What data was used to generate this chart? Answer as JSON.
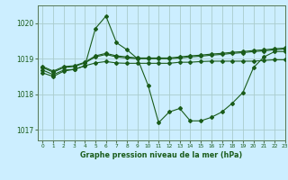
{
  "background_color": "#cceeff",
  "grid_color": "#aacccc",
  "line_color": "#1a5c1a",
  "title": "Graphe pression niveau de la mer (hPa)",
  "xlim": [
    -0.5,
    23
  ],
  "ylim": [
    1016.7,
    1020.5
  ],
  "yticks": [
    1017,
    1018,
    1019,
    1020
  ],
  "xticks": [
    0,
    1,
    2,
    3,
    4,
    5,
    6,
    7,
    8,
    9,
    10,
    11,
    12,
    13,
    14,
    15,
    16,
    17,
    18,
    19,
    20,
    21,
    22,
    23
  ],
  "series": [
    {
      "x": [
        0,
        1,
        2,
        3,
        4,
        5,
        6,
        7,
        8,
        9,
        10,
        11,
        12,
        13,
        14,
        15,
        16,
        17,
        18,
        19,
        20,
        21,
        22,
        23
      ],
      "y": [
        1018.6,
        1018.5,
        1018.65,
        1018.7,
        1018.8,
        1019.85,
        1020.2,
        1019.45,
        1019.25,
        1019.0,
        1018.25,
        1017.2,
        1017.5,
        1017.6,
        1017.25,
        1017.25,
        1017.35,
        1017.5,
        1017.75,
        1018.05,
        1018.75,
        1019.05,
        1019.2,
        1019.2
      ]
    },
    {
      "x": [
        0,
        1,
        2,
        3,
        4,
        5,
        6,
        7,
        8,
        9,
        10,
        11,
        12,
        13,
        14,
        15,
        16,
        17,
        18,
        19,
        20,
        21,
        22,
        23
      ],
      "y": [
        1018.75,
        1018.62,
        1018.75,
        1018.78,
        1018.88,
        1019.05,
        1019.12,
        1019.05,
        1019.02,
        1019.0,
        1019.0,
        1019.0,
        1019.0,
        1019.02,
        1019.05,
        1019.07,
        1019.1,
        1019.12,
        1019.15,
        1019.17,
        1019.2,
        1019.22,
        1019.25,
        1019.27
      ]
    },
    {
      "x": [
        0,
        1,
        2,
        3,
        4,
        5,
        6,
        7,
        8,
        9,
        10,
        11,
        12,
        13,
        14,
        15,
        16,
        17,
        18,
        19,
        20,
        21,
        22,
        23
      ],
      "y": [
        1018.78,
        1018.65,
        1018.78,
        1018.8,
        1018.9,
        1019.08,
        1019.15,
        1019.08,
        1019.05,
        1019.02,
        1019.02,
        1019.02,
        1019.02,
        1019.05,
        1019.08,
        1019.1,
        1019.13,
        1019.15,
        1019.18,
        1019.2,
        1019.23,
        1019.25,
        1019.28,
        1019.3
      ]
    },
    {
      "x": [
        0,
        1,
        2,
        3,
        4,
        5,
        6,
        7,
        8,
        9,
        10,
        11,
        12,
        13,
        14,
        15,
        16,
        17,
        18,
        19,
        20,
        21,
        22,
        23
      ],
      "y": [
        1018.68,
        1018.55,
        1018.68,
        1018.7,
        1018.8,
        1018.88,
        1018.92,
        1018.88,
        1018.87,
        1018.87,
        1018.87,
        1018.87,
        1018.87,
        1018.9,
        1018.9,
        1018.92,
        1018.93,
        1018.93,
        1018.93,
        1018.93,
        1018.93,
        1018.95,
        1018.97,
        1018.97
      ]
    }
  ]
}
